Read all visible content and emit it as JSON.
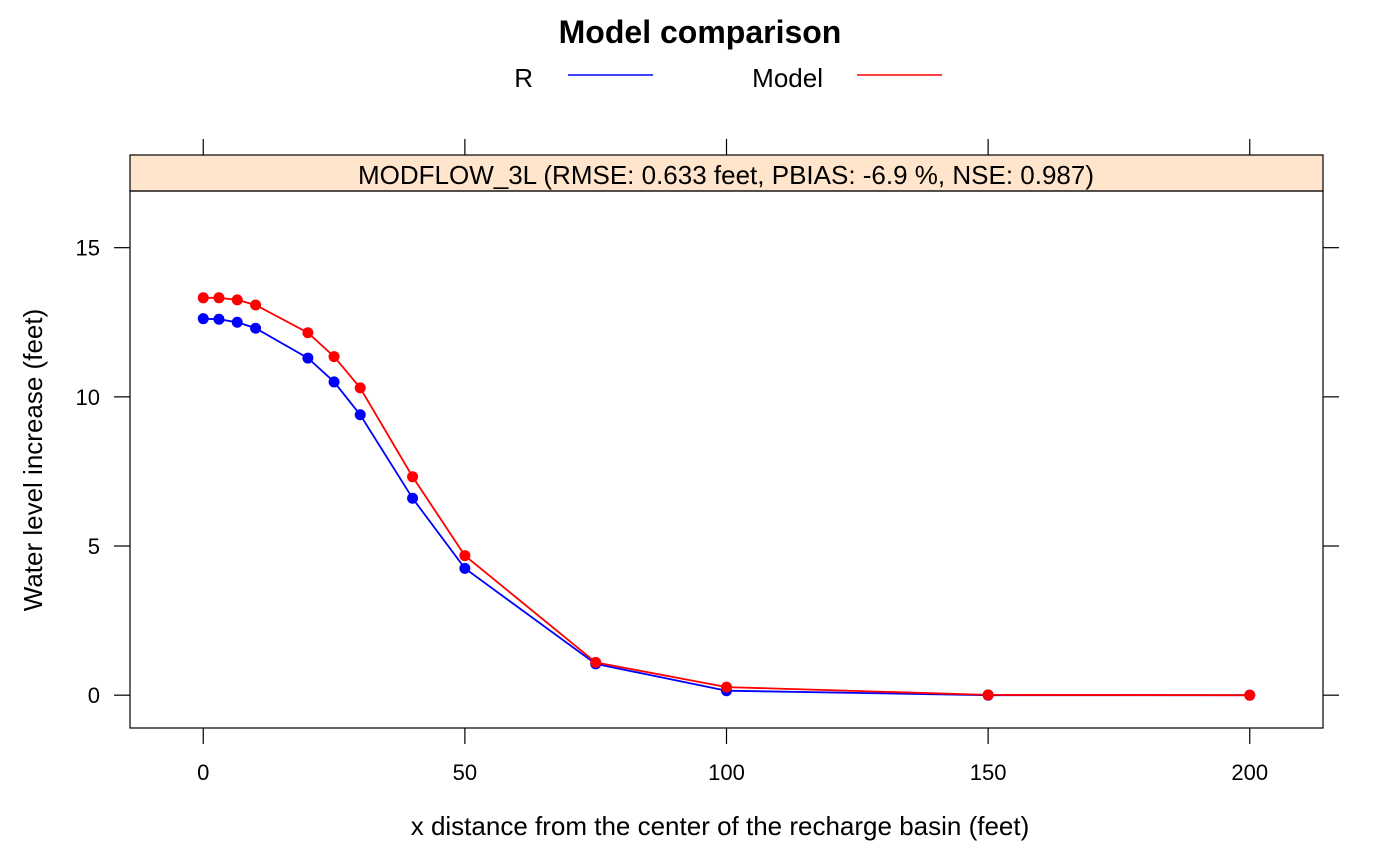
{
  "chart_data": {
    "type": "line",
    "title": "Model comparison",
    "panel_label": "MODFLOW_3L (RMSE: 0.633 feet, PBIAS: -6.9 %, NSE: 0.987)",
    "xlabel": "x distance from the center of the recharge basin (feet)",
    "ylabel": "Water level increase (feet)",
    "xlim": [
      -14,
      214
    ],
    "ylim": [
      -1.1,
      16.9
    ],
    "x_ticks": [
      0,
      50,
      100,
      150,
      200
    ],
    "x_tick_labels": [
      "0",
      "50",
      "100",
      "150",
      "200"
    ],
    "y_ticks": [
      0,
      5,
      10,
      15
    ],
    "y_tick_labels": [
      "0",
      "5",
      "10",
      "15"
    ],
    "grid": false,
    "legend_position": "top",
    "x": [
      0,
      3,
      6.5,
      10,
      20,
      25,
      30,
      40,
      50,
      75,
      100,
      150,
      200
    ],
    "series": [
      {
        "name": "R",
        "color": "#0000ff",
        "values": [
          12.62,
          12.6,
          12.5,
          12.3,
          11.3,
          10.5,
          9.4,
          6.6,
          4.25,
          1.05,
          0.15,
          0.0,
          0.0
        ]
      },
      {
        "name": "Model",
        "color": "#ff0000",
        "values": [
          13.32,
          13.32,
          13.25,
          13.08,
          12.15,
          11.35,
          10.3,
          7.32,
          4.68,
          1.1,
          0.27,
          0.01,
          0.0
        ]
      }
    ],
    "strip_color": "#ffe5cc"
  }
}
